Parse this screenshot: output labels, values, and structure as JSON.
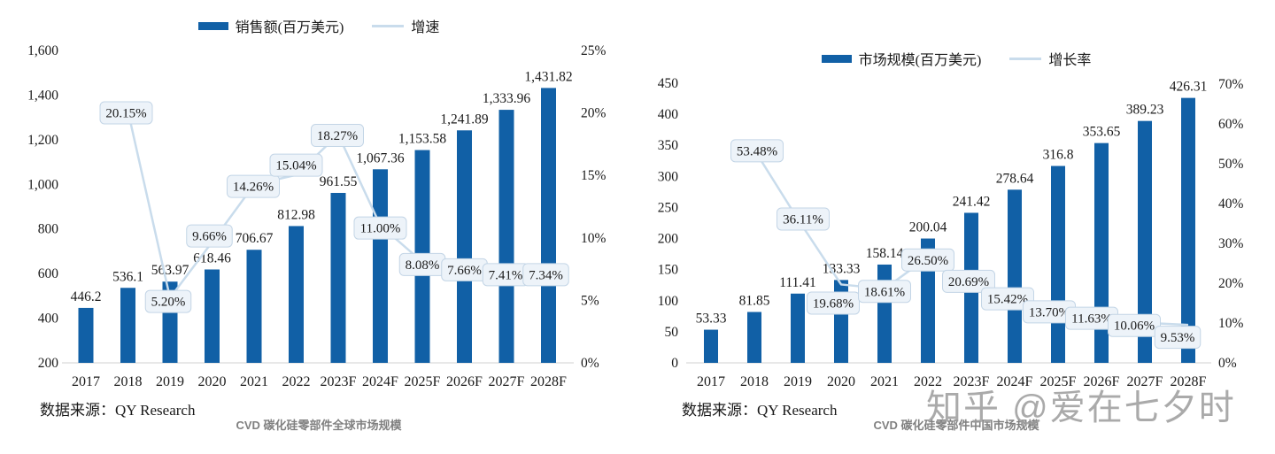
{
  "watermark": "知乎 @爱在七夕时",
  "colors": {
    "bar": "#1160a6",
    "line": "#c9dcec",
    "callout_bg": "#edf3f9",
    "callout_border": "#c3d5e6",
    "baseline": "#d9d9d9",
    "text": "#1a1a1a",
    "caption": "#808080",
    "watermark": "#9c9c9c"
  },
  "chart_data": [
    {
      "type": "bar",
      "title": "CVD 碳化硅零部件全球市场规模",
      "source": "数据来源：QY Research",
      "xlabel": "",
      "grid": false,
      "legend_position": "top",
      "categories": [
        "2017",
        "2018",
        "2019",
        "2020",
        "2021",
        "2022",
        "2023F",
        "2024F",
        "2025F",
        "2026F",
        "2027F",
        "2028F"
      ],
      "series": [
        {
          "name": "销售额(百万美元)",
          "type": "bar",
          "axis": "left",
          "values": [
            446.2,
            536.1,
            563.97,
            618.46,
            706.67,
            812.98,
            961.55,
            1067.36,
            1153.58,
            1241.89,
            1333.96,
            1431.82
          ],
          "labels": [
            "446.2",
            "536.1",
            "563.97",
            "618.46",
            "706.67",
            "812.98",
            "961.55",
            "1,067.36",
            "1,153.58",
            "1,241.89",
            "1,333.96",
            "1,431.82"
          ]
        },
        {
          "name": "增速",
          "type": "line",
          "axis": "right",
          "values": [
            null,
            20.15,
            5.2,
            9.66,
            14.26,
            15.04,
            18.27,
            11.0,
            8.08,
            7.66,
            7.41,
            7.34
          ],
          "labels": [
            null,
            "20.15%",
            "5.20%",
            "9.66%",
            "14.26%",
            "15.04%",
            "18.27%",
            "11.00%",
            "8.08%",
            "7.66%",
            "7.41%",
            "7.34%"
          ],
          "label_dx": [
            0,
            -2,
            -2,
            -3,
            -1,
            0,
            -1,
            0,
            0,
            0,
            -1,
            -3
          ],
          "label_dy": [
            0,
            2,
            4,
            -7,
            2,
            -11,
            1,
            3,
            3,
            3,
            5,
            4
          ]
        }
      ],
      "left_axis": {
        "min": 200,
        "max": 1600,
        "step": 200,
        "ticks": [
          "200",
          "400",
          "600",
          "800",
          "1,000",
          "1,200",
          "1,400",
          "1,600"
        ]
      },
      "right_axis": {
        "min": 0,
        "max": 25,
        "step": 5,
        "ticks": [
          "0%",
          "5%",
          "10%",
          "15%",
          "20%",
          "25%"
        ]
      }
    },
    {
      "type": "bar",
      "title": "CVD 碳化硅零部件中国市场规模",
      "source": "数据来源：QY Research",
      "xlabel": "",
      "grid": false,
      "legend_position": "top",
      "categories": [
        "2017",
        "2018",
        "2019",
        "2020",
        "2021",
        "2022",
        "2023F",
        "2024F",
        "2025F",
        "2026F",
        "2027F",
        "2028F"
      ],
      "series": [
        {
          "name": "市场规模(百万美元)",
          "type": "bar",
          "axis": "left",
          "values": [
            53.33,
            81.85,
            111.41,
            133.33,
            158.14,
            200.04,
            241.42,
            278.64,
            316.8,
            353.65,
            389.23,
            426.31
          ],
          "labels": [
            "53.33",
            "81.85",
            "111.41",
            "133.33",
            "158.14",
            "200.04",
            "241.42",
            "278.64",
            "316.8",
            "353.65",
            "389.23",
            "426.31"
          ]
        },
        {
          "name": "增长率",
          "type": "line",
          "axis": "right",
          "values": [
            null,
            53.48,
            36.11,
            19.68,
            18.61,
            26.5,
            20.69,
            15.42,
            13.7,
            11.63,
            10.06,
            9.53
          ],
          "labels": [
            null,
            "53.48%",
            "36.11%",
            "19.68%",
            "18.61%",
            "26.50%",
            "20.69%",
            "15.42%",
            "13.70%",
            "11.63%",
            "10.06%",
            "9.53%"
          ],
          "label_dx": [
            0,
            3,
            6,
            -9,
            0,
            0,
            -3,
            -8,
            -10,
            -11,
            -12,
            -12
          ],
          "label_dy": [
            0,
            1,
            0,
            21,
            3,
            3,
            1,
            -3,
            4,
            2,
            3,
            14
          ]
        }
      ],
      "left_axis": {
        "min": 0,
        "max": 450,
        "step": 50,
        "ticks": [
          "0",
          "50",
          "100",
          "150",
          "200",
          "250",
          "300",
          "350",
          "400",
          "450"
        ]
      },
      "right_axis": {
        "min": 0,
        "max": 70,
        "step": 10,
        "ticks": [
          "0%",
          "10%",
          "20%",
          "30%",
          "40%",
          "50%",
          "60%",
          "70%"
        ]
      }
    }
  ]
}
